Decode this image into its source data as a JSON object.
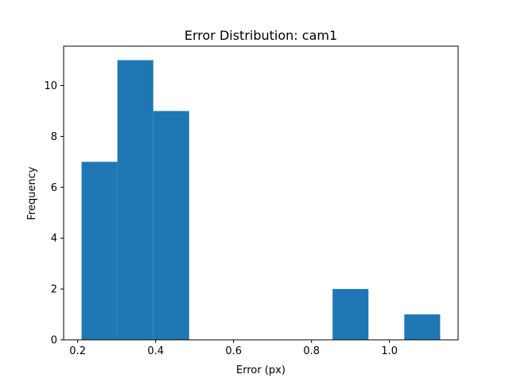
{
  "chart_data": {
    "type": "bar",
    "title": "Error Distribution: cam1",
    "xlabel": "Error (px)",
    "ylabel": "Frequency",
    "xlim": [
      0.164,
      1.176
    ],
    "ylim": [
      0,
      11.55
    ],
    "xticks": [
      0.2,
      0.4,
      0.6,
      0.8,
      1.0
    ],
    "xtick_labels": [
      "0.2",
      "0.4",
      "0.6",
      "0.8",
      "1.0"
    ],
    "yticks": [
      0,
      2,
      4,
      6,
      8,
      10
    ],
    "ytick_labels": [
      "0",
      "2",
      "4",
      "6",
      "8",
      "10"
    ],
    "bin_edges": [
      0.21,
      0.302,
      0.394,
      0.486,
      0.578,
      0.67,
      0.762,
      0.854,
      0.946,
      1.038,
      1.13
    ],
    "values": [
      7,
      11,
      9,
      0,
      0,
      0,
      0,
      2,
      0,
      1
    ],
    "bar_color": "#1f77b4",
    "grid": false,
    "legend": "none"
  }
}
